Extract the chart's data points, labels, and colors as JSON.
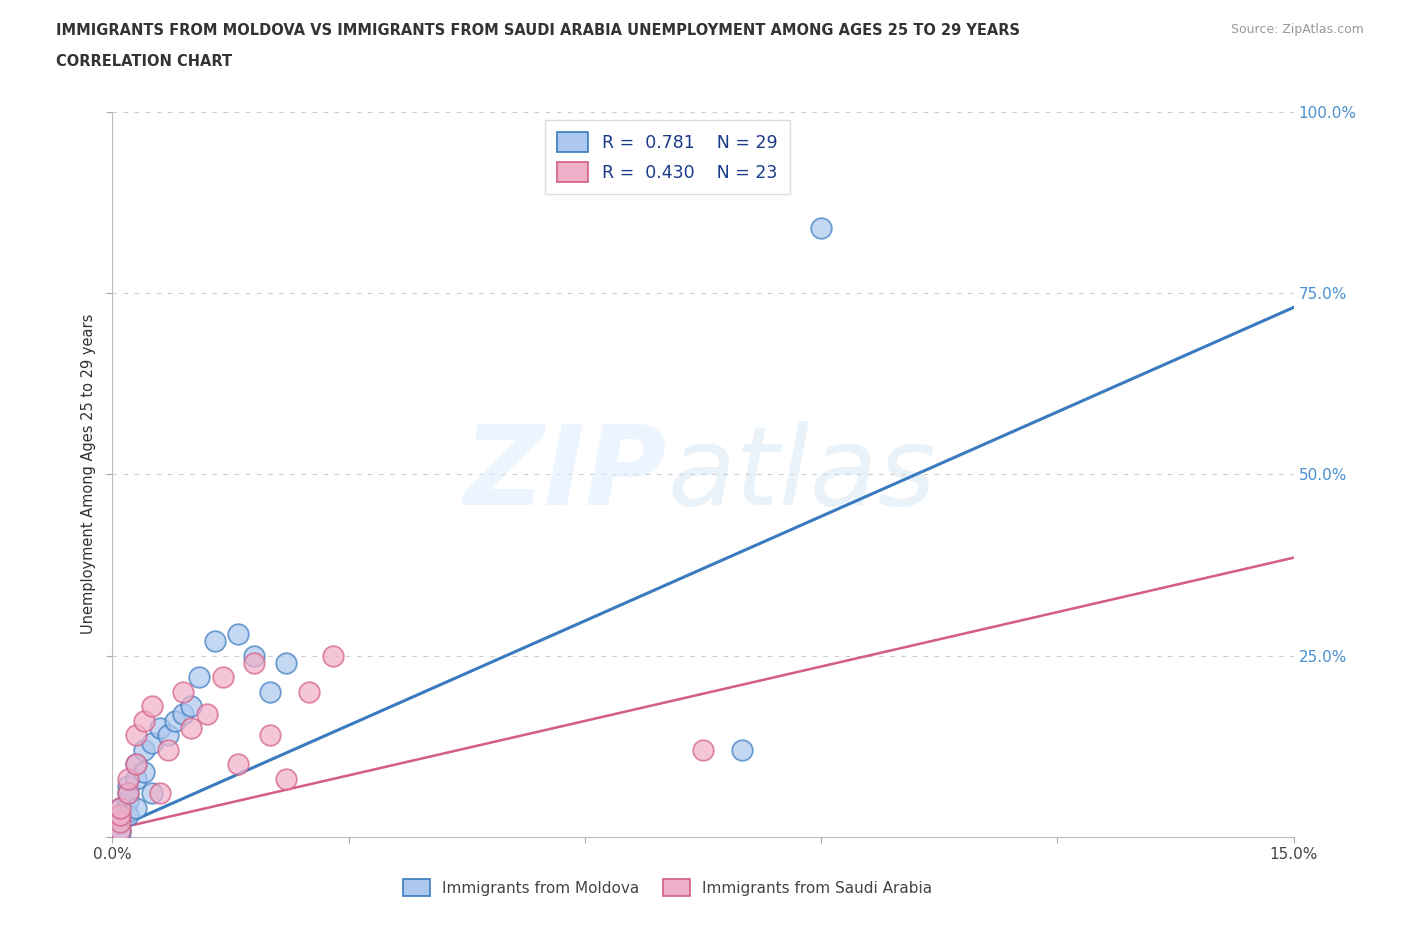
{
  "title_line1": "IMMIGRANTS FROM MOLDOVA VS IMMIGRANTS FROM SAUDI ARABIA UNEMPLOYMENT AMONG AGES 25 TO 29 YEARS",
  "title_line2": "CORRELATION CHART",
  "source": "Source: ZipAtlas.com",
  "ylabel": "Unemployment Among Ages 25 to 29 years",
  "xlim": [
    0.0,
    0.15
  ],
  "ylim": [
    0.0,
    1.0
  ],
  "xticks": [
    0.0,
    0.03,
    0.06,
    0.09,
    0.12,
    0.15
  ],
  "xticklabels": [
    "0.0%",
    "",
    "",
    "",
    "",
    "15.0%"
  ],
  "ytick_positions": [
    0.0,
    0.25,
    0.5,
    0.75,
    1.0
  ],
  "ytick_labels_right": [
    "",
    "25.0%",
    "50.0%",
    "75.0%",
    "100.0%"
  ],
  "moldova_R": 0.781,
  "moldova_N": 29,
  "saudi_R": 0.43,
  "saudi_N": 23,
  "moldova_color": "#adc8ee",
  "saudi_color": "#f0afc8",
  "moldova_line_color": "#3a7abf",
  "saudi_line_color": "#d45e85",
  "moldova_line_slope": 4.8,
  "moldova_line_intercept": 0.01,
  "saudi_line_slope": 2.5,
  "saudi_line_intercept": 0.01,
  "moldova_x": [
    0.001,
    0.001,
    0.001,
    0.001,
    0.001,
    0.002,
    0.002,
    0.002,
    0.002,
    0.003,
    0.003,
    0.003,
    0.004,
    0.004,
    0.005,
    0.005,
    0.006,
    0.007,
    0.008,
    0.009,
    0.01,
    0.011,
    0.013,
    0.016,
    0.018,
    0.02,
    0.022,
    0.08,
    0.09
  ],
  "moldova_y": [
    0.01,
    0.02,
    0.03,
    0.04,
    0.005,
    0.05,
    0.07,
    0.06,
    0.03,
    0.08,
    0.1,
    0.04,
    0.12,
    0.09,
    0.13,
    0.06,
    0.15,
    0.14,
    0.16,
    0.17,
    0.18,
    0.22,
    0.27,
    0.28,
    0.25,
    0.2,
    0.24,
    0.12,
    0.84
  ],
  "saudi_x": [
    0.001,
    0.001,
    0.001,
    0.001,
    0.002,
    0.002,
    0.003,
    0.003,
    0.004,
    0.005,
    0.006,
    0.007,
    0.009,
    0.01,
    0.012,
    0.014,
    0.016,
    0.018,
    0.02,
    0.022,
    0.025,
    0.028,
    0.075
  ],
  "saudi_y": [
    0.01,
    0.02,
    0.03,
    0.04,
    0.06,
    0.08,
    0.1,
    0.14,
    0.16,
    0.18,
    0.06,
    0.12,
    0.2,
    0.15,
    0.17,
    0.22,
    0.1,
    0.24,
    0.14,
    0.08,
    0.2,
    0.25,
    0.12
  ]
}
